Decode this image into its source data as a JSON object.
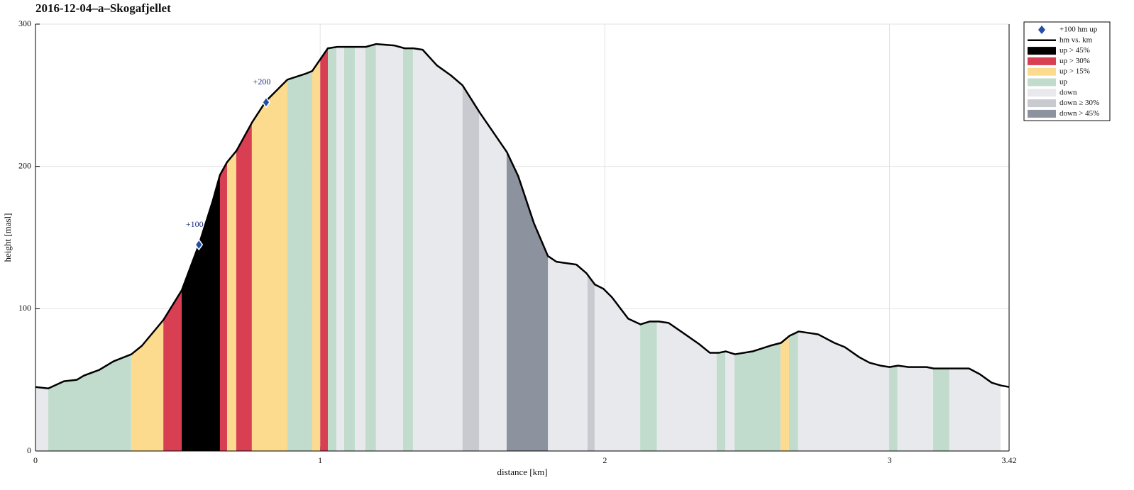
{
  "chart_data": {
    "type": "area",
    "title": "2016-12-04–a–Skogafjellet",
    "xlabel": "distance [km]",
    "ylabel": "height [masl]",
    "xlim": [
      0,
      3.42
    ],
    "ylim": [
      0,
      300
    ],
    "xticks": [
      0,
      1,
      2,
      3,
      3.42
    ],
    "yticks": [
      0,
      100,
      200,
      300
    ],
    "grid": true,
    "legend": "upper right outside",
    "markers": {
      "name": "+100 hm up",
      "color": "#1f4fa8",
      "x": [
        0.574,
        0.81
      ],
      "values": [
        145,
        245
      ],
      "labels": [
        "+100",
        "+200"
      ]
    },
    "line": {
      "name": "hm vs. km",
      "color": "#000000",
      "x": [
        0,
        0.045,
        0.1,
        0.145,
        0.17,
        0.224,
        0.274,
        0.337,
        0.374,
        0.449,
        0.514,
        0.574,
        0.623,
        0.648,
        0.673,
        0.706,
        0.761,
        0.81,
        0.885,
        0.947,
        0.972,
        1.027,
        1.06,
        1.12,
        1.16,
        1.197,
        1.26,
        1.297,
        1.327,
        1.36,
        1.41,
        1.459,
        1.5,
        1.56,
        1.656,
        1.696,
        1.751,
        1.8,
        1.83,
        1.9,
        1.935,
        1.965,
        1.995,
        2.025,
        2.082,
        2.125,
        2.157,
        2.19,
        2.224,
        2.282,
        2.332,
        2.369,
        2.4,
        2.425,
        2.457,
        2.519,
        2.581,
        2.619,
        2.649,
        2.681,
        2.749,
        2.806,
        2.843,
        2.893,
        2.93,
        2.968,
        3.0,
        3.03,
        3.067,
        3.13,
        3.155,
        3.217,
        3.279,
        3.317,
        3.359,
        3.392,
        3.42
      ],
      "values": [
        45,
        44,
        49,
        50,
        53,
        57,
        63,
        68,
        74,
        92,
        113,
        145,
        176,
        194,
        203,
        211,
        231,
        246,
        261,
        265,
        267,
        283,
        284,
        284,
        284,
        286,
        285,
        283,
        283,
        282,
        271,
        264,
        257,
        238,
        210,
        193,
        160,
        137,
        133,
        131,
        125,
        117,
        114,
        108,
        93,
        89,
        91,
        91,
        90,
        82,
        75,
        69,
        69,
        70,
        68,
        70,
        74,
        76,
        81,
        84,
        82,
        76,
        73,
        66,
        62,
        60,
        59,
        60,
        59,
        59,
        58,
        58,
        58,
        54,
        48,
        46,
        45
      ]
    },
    "series": [
      {
        "name": "up > 45%",
        "color": "#000000",
        "ranges": [
          [
            0.513,
            0.648
          ]
        ]
      },
      {
        "name": "up > 30%",
        "color": "#d83f53",
        "ranges": [
          [
            0.449,
            0.513
          ],
          [
            0.648,
            0.673
          ],
          [
            0.705,
            0.76
          ],
          [
            1.0,
            1.027
          ]
        ]
      },
      {
        "name": "up > 15%",
        "color": "#fddb8e",
        "ranges": [
          [
            0.336,
            0.449
          ],
          [
            0.673,
            0.705
          ],
          [
            0.76,
            0.885
          ],
          [
            0.972,
            1.0
          ],
          [
            2.617,
            2.647
          ]
        ]
      },
      {
        "name": "up",
        "color": "#c1dccc",
        "ranges": [
          [
            0.045,
            0.336
          ],
          [
            0.885,
            0.972
          ],
          [
            1.027,
            1.057
          ],
          [
            1.084,
            1.122
          ],
          [
            1.159,
            1.196
          ],
          [
            1.291,
            1.326
          ],
          [
            2.124,
            2.183
          ],
          [
            2.393,
            2.423
          ],
          [
            2.455,
            2.617
          ],
          [
            2.647,
            2.679
          ],
          [
            2.998,
            3.028
          ],
          [
            3.153,
            3.21
          ]
        ]
      },
      {
        "name": "down",
        "color": "#e8e9ec",
        "ranges": [
          [
            0,
            0.045
          ],
          [
            1.057,
            1.084
          ],
          [
            1.122,
            1.159
          ],
          [
            1.196,
            1.291
          ],
          [
            1.326,
            1.5
          ],
          [
            1.558,
            1.655
          ],
          [
            1.8,
            1.939
          ],
          [
            1.964,
            2.124
          ],
          [
            2.183,
            2.393
          ],
          [
            2.423,
            2.455
          ],
          [
            2.679,
            2.998
          ],
          [
            3.028,
            3.153
          ],
          [
            3.21,
            3.39
          ]
        ]
      },
      {
        "name": "down ≥ 30%",
        "color": "#c8cad0",
        "ranges": [
          [
            1.5,
            1.558
          ],
          [
            1.939,
            1.964
          ]
        ]
      },
      {
        "name": "down > 45%",
        "color": "#8c939f",
        "ranges": [
          [
            1.655,
            1.8
          ]
        ]
      }
    ]
  }
}
